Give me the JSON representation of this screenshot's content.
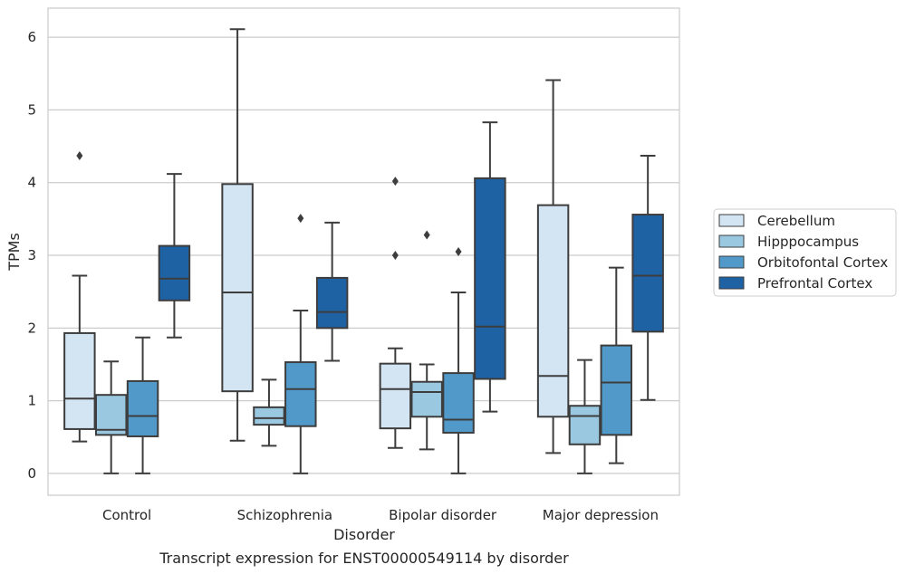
{
  "chart_data": {
    "type": "box",
    "caption": "Transcript expression for ENST00000549114 by disorder",
    "xlabel": "Disorder",
    "ylabel": "TPMs",
    "ylim": [
      -0.3,
      6.4
    ],
    "yticks": [
      0,
      1,
      2,
      3,
      4,
      5,
      6
    ],
    "grid": true,
    "legend_position": "right",
    "categories": [
      "Control",
      "Schizophrenia",
      "Bipolar disorder",
      "Major depression"
    ],
    "series": [
      {
        "name": "Cerebellum",
        "color": "#d3e4f3",
        "boxes": [
          {
            "whislo": 0.44,
            "q1": 0.61,
            "med": 1.03,
            "q3": 1.93,
            "whishi": 2.72,
            "fliers": [
              4.37
            ]
          },
          {
            "whislo": 0.45,
            "q1": 1.13,
            "med": 2.49,
            "q3": 3.98,
            "whishi": 6.11,
            "fliers": []
          },
          {
            "whislo": 0.35,
            "q1": 0.62,
            "med": 1.16,
            "q3": 1.51,
            "whishi": 1.72,
            "fliers": [
              4.02,
              3.0
            ]
          },
          {
            "whislo": 0.28,
            "q1": 0.78,
            "med": 1.34,
            "q3": 3.69,
            "whishi": 5.41,
            "fliers": []
          }
        ]
      },
      {
        "name": "Hipppocampus",
        "color": "#9ac8e0",
        "boxes": [
          {
            "whislo": 0.0,
            "q1": 0.53,
            "med": 0.6,
            "q3": 1.08,
            "whishi": 1.54,
            "fliers": []
          },
          {
            "whislo": 0.38,
            "q1": 0.67,
            "med": 0.76,
            "q3": 0.91,
            "whishi": 1.29,
            "fliers": []
          },
          {
            "whislo": 0.33,
            "q1": 0.78,
            "med": 1.12,
            "q3": 1.26,
            "whishi": 1.5,
            "fliers": [
              3.28
            ]
          },
          {
            "whislo": 0.0,
            "q1": 0.4,
            "med": 0.79,
            "q3": 0.93,
            "whishi": 1.56,
            "fliers": []
          }
        ]
      },
      {
        "name": "Orbitofontal Cortex",
        "color": "#5199c9",
        "boxes": [
          {
            "whislo": 0.0,
            "q1": 0.51,
            "med": 0.79,
            "q3": 1.27,
            "whishi": 1.87,
            "fliers": []
          },
          {
            "whislo": 0.0,
            "q1": 0.65,
            "med": 1.16,
            "q3": 1.53,
            "whishi": 2.24,
            "fliers": [
              3.51
            ]
          },
          {
            "whislo": 0.0,
            "q1": 0.56,
            "med": 0.74,
            "q3": 1.38,
            "whishi": 2.49,
            "fliers": [
              3.05
            ]
          },
          {
            "whislo": 0.14,
            "q1": 0.53,
            "med": 1.25,
            "q3": 1.76,
            "whishi": 2.83,
            "fliers": []
          }
        ]
      },
      {
        "name": "Prefrontal Cortex",
        "color": "#1f62a4",
        "boxes": [
          {
            "whislo": 1.87,
            "q1": 2.38,
            "med": 2.68,
            "q3": 3.13,
            "whishi": 4.12,
            "fliers": []
          },
          {
            "whislo": 1.55,
            "q1": 2.0,
            "med": 2.22,
            "q3": 2.69,
            "whishi": 3.45,
            "fliers": []
          },
          {
            "whislo": 0.85,
            "q1": 1.3,
            "med": 2.02,
            "q3": 4.06,
            "whishi": 4.83,
            "fliers": []
          },
          {
            "whislo": 1.01,
            "q1": 1.95,
            "med": 2.72,
            "q3": 3.56,
            "whishi": 4.37,
            "fliers": []
          }
        ]
      }
    ]
  }
}
